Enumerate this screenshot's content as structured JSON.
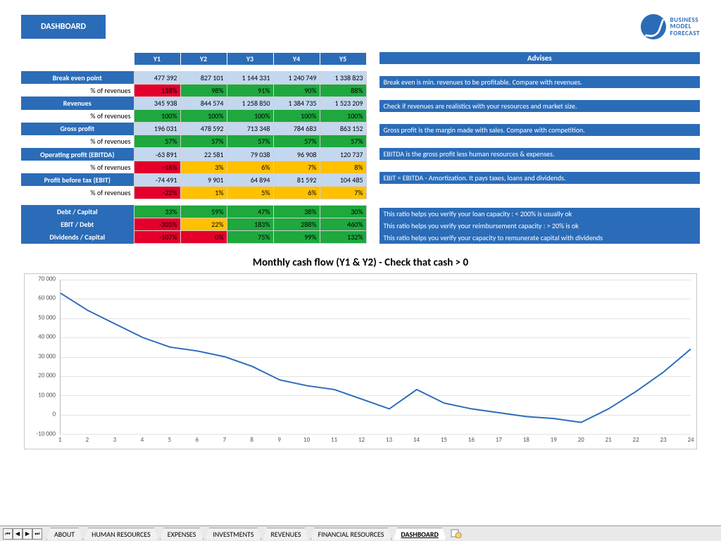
{
  "header": {
    "button": "DASHBOARD",
    "logo_lines": [
      "BUSINESS",
      "MODEL",
      "FORECAST"
    ]
  },
  "colors": {
    "brand": "#2b6cb8",
    "green": "#1ea83e",
    "red": "#e4002b",
    "yellow": "#ffc000",
    "lightblue": "#c3d7ef",
    "grid": "#e3e3e3",
    "line": "#2b6cb8"
  },
  "years": [
    "Y1",
    "Y2",
    "Y3",
    "Y4",
    "Y5"
  ],
  "advises_header": "Advises",
  "section1": [
    {
      "label": "Break even point",
      "vals": [
        "477 392",
        "827 101",
        "1 144 331",
        "1 240 749",
        "1 338 823"
      ],
      "cls": "v-blue",
      "sub": "% of revenues",
      "subvals": [
        "138%",
        "98%",
        "91%",
        "90%",
        "88%"
      ],
      "subcls": [
        "v-red",
        "v-green",
        "v-green",
        "v-green",
        "v-green"
      ],
      "advise": "Break even is min. revenues to be profitable. Compare with revenues."
    },
    {
      "label": "Revenues",
      "vals": [
        "345 938",
        "844 574",
        "1 258 850",
        "1 384 735",
        "1 523 209"
      ],
      "cls": "v-blue",
      "sub": "% of revenues",
      "subvals": [
        "100%",
        "100%",
        "100%",
        "100%",
        "100%"
      ],
      "subcls": [
        "v-green",
        "v-green",
        "v-green",
        "v-green",
        "v-green"
      ],
      "advise": "Check if revenues are realistics with your resources and market size."
    },
    {
      "label": "Gross profit",
      "vals": [
        "196 031",
        "478 592",
        "713 348",
        "784 683",
        "863 152"
      ],
      "cls": "v-blue",
      "sub": "% of revenues",
      "subvals": [
        "57%",
        "57%",
        "57%",
        "57%",
        "57%"
      ],
      "subcls": [
        "v-green",
        "v-green",
        "v-green",
        "v-green",
        "v-green"
      ],
      "advise": "Gross profit is the margin made with sales. Compare with competition."
    },
    {
      "label": "Operating profit (EBITDA)",
      "vals": [
        "-63 891",
        "22 581",
        "79 038",
        "96 908",
        "120 737"
      ],
      "cls": "v-blue",
      "sub": "% of revenues",
      "subvals": [
        "-18%",
        "3%",
        "6%",
        "7%",
        "8%"
      ],
      "subcls": [
        "v-red",
        "v-yel",
        "v-yel",
        "v-yel",
        "v-yel"
      ],
      "advise": "EBITDA is the gross profit less human resources & expenses."
    },
    {
      "label": "Profit before tax (EBIT)",
      "vals": [
        "-74 491",
        "9 901",
        "64 894",
        "81 592",
        "104 485"
      ],
      "cls": "v-blue",
      "sub": "% of revenues",
      "subvals": [
        "-22%",
        "1%",
        "5%",
        "6%",
        "7%"
      ],
      "subcls": [
        "v-red",
        "v-yel",
        "v-yel",
        "v-yel",
        "v-yel"
      ],
      "advise": "EBIT = EBITDA - Amortization. It pays taxes, loans and dividends."
    }
  ],
  "section2": [
    {
      "label": "Debt / Capital",
      "vals": [
        "33%",
        "59%",
        "47%",
        "38%",
        "30%"
      ],
      "cls": [
        "v-green",
        "v-green",
        "v-green",
        "v-green",
        "v-green"
      ],
      "advise": "This ratio helps you verify your loan capacity : < 200% is usually ok"
    },
    {
      "label": "EBIT / Debt",
      "vals": [
        "-305%",
        "22%",
        "183%",
        "288%",
        "460%"
      ],
      "cls": [
        "v-red",
        "v-yel",
        "v-green",
        "v-green",
        "v-green"
      ],
      "advise": "This ratio helps you verify your reimbursement capacity : > 20% is ok"
    },
    {
      "label": "Dividends / Capital",
      "vals": [
        "-107%",
        "0%",
        "75%",
        "99%",
        "132%"
      ],
      "cls": [
        "v-red",
        "v-red",
        "v-green",
        "v-green",
        "v-green"
      ],
      "advise": "This ratio helps you verify your capacity to remunerate capital with dividends"
    }
  ],
  "chart": {
    "title": "Monthly cash flow (Y1 & Y2) - Check that cash > 0",
    "type": "line",
    "ymin": -10000,
    "ymax": 70000,
    "ystep": 10000,
    "x": [
      1,
      2,
      3,
      4,
      5,
      6,
      7,
      8,
      9,
      10,
      11,
      12,
      13,
      14,
      15,
      16,
      17,
      18,
      19,
      20,
      21,
      22,
      23,
      24
    ],
    "y": [
      63000,
      54000,
      47000,
      40000,
      35000,
      33000,
      30000,
      25000,
      18000,
      15000,
      13000,
      8000,
      3000,
      13000,
      6000,
      3000,
      1000,
      -1000,
      -2000,
      -4000,
      3000,
      12000,
      22000,
      34000
    ],
    "line_color": "#2b6cb8",
    "line_width": 2,
    "background": "#ffffff"
  },
  "tabs": {
    "items": [
      "ABOUT",
      "HUMAN RESOURCES",
      "EXPENSES",
      "INVESTMENTS",
      "REVENUES",
      "FINANCIAL RESOURCES",
      "DASHBOARD"
    ],
    "active": 6,
    "nav": [
      "⏮",
      "◀",
      "▶",
      "⏭"
    ]
  }
}
